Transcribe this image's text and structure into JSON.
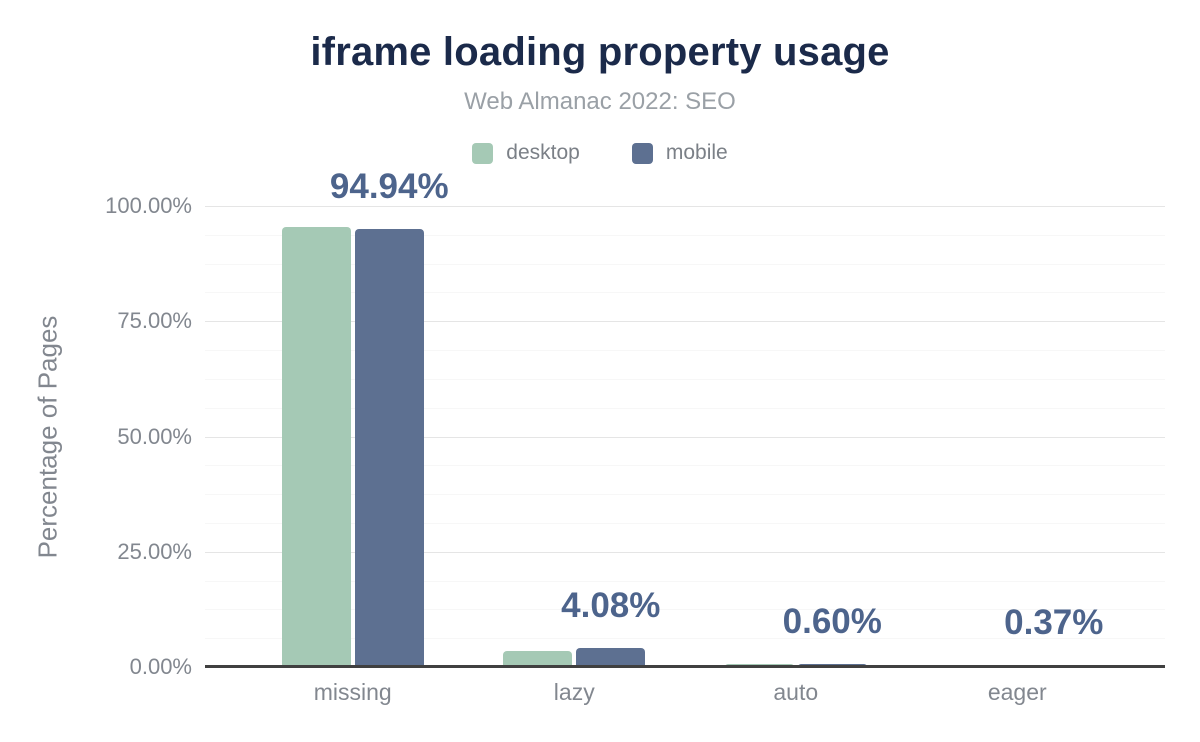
{
  "header": {
    "title": "iframe loading property usage",
    "subtitle": "Web Almanac 2022: SEO"
  },
  "legend": {
    "items": [
      {
        "label": "desktop",
        "color": "#a5c9b5"
      },
      {
        "label": "mobile",
        "color": "#5d7091"
      }
    ]
  },
  "axes": {
    "y_title": "Percentage of Pages",
    "y_tick_labels": [
      "0.00%",
      "25.00%",
      "50.00%",
      "75.00%",
      "100.00%"
    ],
    "x_labels": [
      "missing",
      "lazy",
      "auto",
      "eager"
    ]
  },
  "colors": {
    "title": "#1b2a4a",
    "subtitle": "#9aa0a6",
    "axis_text": "#82878f",
    "data_label": "#4d648c",
    "axis_line": "#404040",
    "grid_major": "#e5e5e5",
    "grid_minor": "#f7f7f7",
    "desktop": "#a5c9b5",
    "mobile": "#5d7091"
  },
  "chart_data": {
    "type": "bar",
    "title": "iframe loading property usage",
    "subtitle": "Web Almanac 2022: SEO",
    "categories": [
      "missing",
      "lazy",
      "auto",
      "eager"
    ],
    "series": [
      {
        "name": "desktop",
        "color": "#a5c9b5",
        "values": [
          95.5,
          3.4,
          0.7,
          0.3
        ]
      },
      {
        "name": "mobile",
        "color": "#5d7091",
        "values": [
          94.94,
          4.08,
          0.6,
          0.37
        ]
      }
    ],
    "data_labels": [
      "94.94%",
      "4.08%",
      "0.60%",
      "0.37%"
    ],
    "data_labels_series": "mobile",
    "xlabel": "",
    "ylabel": "Percentage of Pages",
    "ylim": [
      0,
      100
    ],
    "yticks": [
      {
        "value": 0,
        "label": "0.00%"
      },
      {
        "value": 25,
        "label": "25.00%"
      },
      {
        "value": 50,
        "label": "50.00%"
      },
      {
        "value": 75,
        "label": "75.00%"
      },
      {
        "value": 100,
        "label": "100.00%"
      }
    ],
    "minor_grid_step": 6.25,
    "grid": true,
    "legend_position": "top"
  }
}
